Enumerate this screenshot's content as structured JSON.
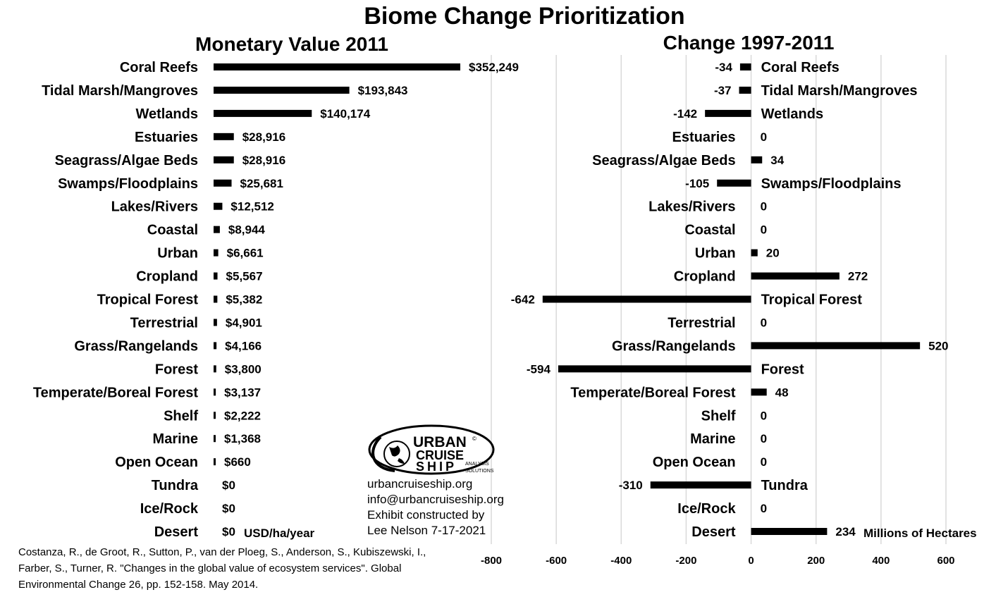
{
  "chart_data": [
    {
      "type": "bar",
      "orientation": "horizontal",
      "title": "Monetary Value 2011",
      "unit_label": "USD/ha/year",
      "categories": [
        "Coral Reefs",
        "Tidal Marsh/Mangroves",
        "Wetlands",
        "Estuaries",
        "Seagrass/Algae Beds",
        "Swamps/Floodplains",
        "Lakes/Rivers",
        "Coastal",
        "Urban",
        "Cropland",
        "Tropical Forest",
        "Terrestrial",
        "Grass/Rangelands",
        "Forest",
        "Temperate/Boreal Forest",
        "Shelf",
        "Marine",
        "Open Ocean",
        "Tundra",
        "Ice/Rock",
        "Desert"
      ],
      "values": [
        352249,
        193843,
        140174,
        28916,
        28916,
        25681,
        12512,
        8944,
        6661,
        5567,
        5382,
        4901,
        4166,
        3800,
        3137,
        2222,
        1368,
        660,
        0,
        0,
        0
      ],
      "value_labels": [
        "$352,249",
        "$193,843",
        "$140,174",
        "$28,916",
        "$28,916",
        "$25,681",
        "$12,512",
        "$8,944",
        "$6,661",
        "$5,567",
        "$5,382",
        "$4,901",
        "$4,166",
        "$3,800",
        "$3,137",
        "$2,222",
        "$1,368",
        "$660",
        "$0",
        "$0",
        "$0"
      ],
      "xlim": [
        0,
        400000
      ],
      "grid": true
    },
    {
      "type": "bar",
      "orientation": "horizontal",
      "title": "Change 1997-2011",
      "unit_label": "Millions of Hectares",
      "categories": [
        "Coral Reefs",
        "Tidal Marsh/Mangroves",
        "Wetlands",
        "Estuaries",
        "Seagrass/Algae Beds",
        "Swamps/Floodplains",
        "Lakes/Rivers",
        "Coastal",
        "Urban",
        "Cropland",
        "Tropical Forest",
        "Terrestrial",
        "Grass/Rangelands",
        "Forest",
        "Temperate/Boreal Forest",
        "Shelf",
        "Marine",
        "Open Ocean",
        "Tundra",
        "Ice/Rock",
        "Desert"
      ],
      "values": [
        -34,
        -37,
        -142,
        0,
        34,
        -105,
        0,
        0,
        20,
        272,
        -642,
        0,
        520,
        -594,
        48,
        0,
        0,
        0,
        -310,
        0,
        234
      ],
      "value_labels": [
        "-34",
        "-37",
        "-142",
        "0",
        "34",
        "-105",
        "0",
        "0",
        "20",
        "272",
        "-642",
        "0",
        "520",
        "-594",
        "48",
        "0",
        "0",
        "0",
        "-310",
        "0",
        "234"
      ],
      "xlim": [
        -800,
        600
      ],
      "xticks": [
        -800,
        -600,
        -400,
        -200,
        0,
        200,
        400,
        600
      ],
      "xtick_labels": [
        "-800",
        "-600",
        "-400",
        "-200",
        "0",
        "200",
        "400",
        "600"
      ],
      "grid": true
    }
  ],
  "title": "Biome Change Prioritization",
  "logo": {
    "line1": "URBAN",
    "line2": "CRUISE",
    "line3": "SHIP",
    "tagline1": "ANALYSIS",
    "tagline2": "SOLUTIONS",
    "mark": "©"
  },
  "credit": {
    "website": "urbancruiseship.org",
    "email": "info@urbancruiseship.org",
    "line3": "Exhibit constructed by",
    "line4": "Lee Nelson 7-17-2021"
  },
  "citation": {
    "line1": "Costanza, R., de Groot, R., Sutton, P., van der Ploeg, S., Anderson, S., Kubiszewski, I.,",
    "line2": "Farber, S., Turner, R. \"Changes in the global value of ecosystem services\". Global",
    "line3": "Environmental Change 26, pp. 152-158. May 2014."
  },
  "colors": {
    "bar": "#000000",
    "grid": "#d9d9d9",
    "text": "#000000",
    "background": "#ffffff"
  }
}
